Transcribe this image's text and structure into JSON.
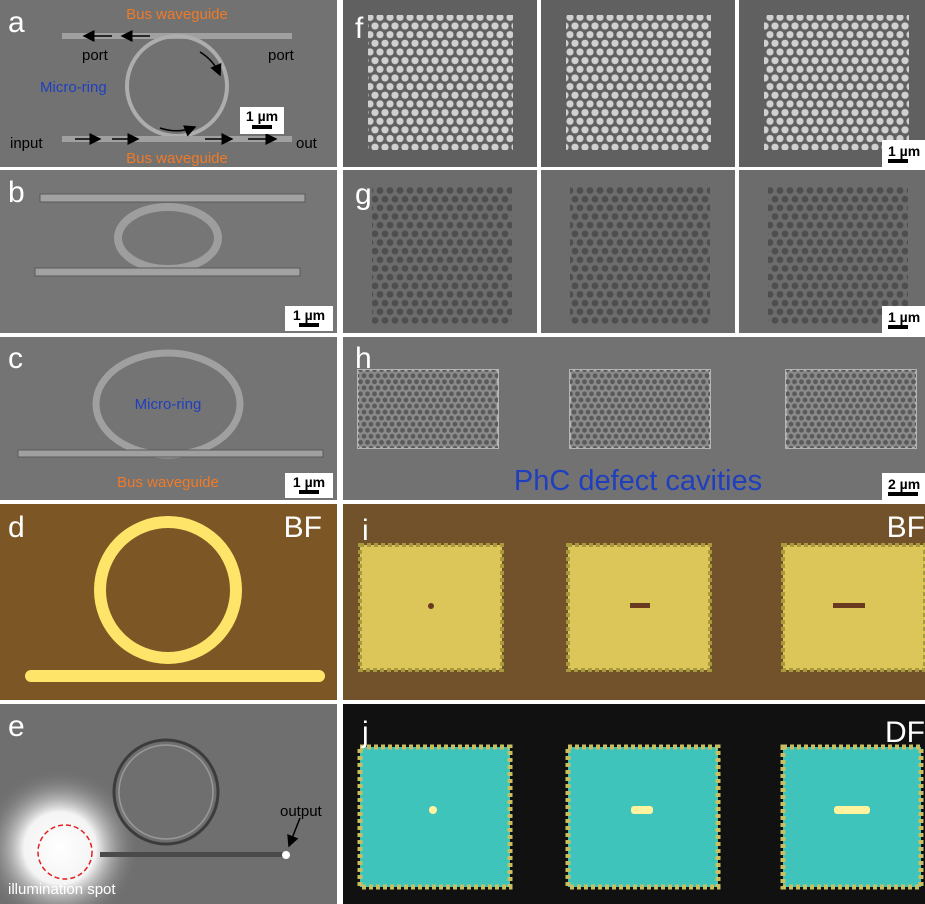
{
  "panels": {
    "a": {
      "label": "a",
      "top_waveguide": "Bus waveguide",
      "port_left": "port",
      "port_right": "port",
      "ring": "Micro-ring",
      "scale": "1 µm",
      "input": "input",
      "output": "out",
      "bottom_waveguide": "Bus waveguide"
    },
    "b": {
      "label": "b",
      "scale": "1 µm"
    },
    "c": {
      "label": "c",
      "ring": "Micro-ring",
      "waveguide": "Bus waveguide",
      "scale": "1 µm"
    },
    "d": {
      "label": "d",
      "mode": "BF"
    },
    "e": {
      "label": "e",
      "output": "output",
      "spot": "illumination spot"
    },
    "f": {
      "label": "f",
      "scale": "1 µm"
    },
    "g": {
      "label": "g",
      "scale": "1 µm"
    },
    "h": {
      "label": "h",
      "caption": "PhC defect cavities",
      "scale": "2 µm"
    },
    "i": {
      "label": "i",
      "mode": "BF"
    },
    "j": {
      "label": "j",
      "mode": "DF"
    }
  }
}
